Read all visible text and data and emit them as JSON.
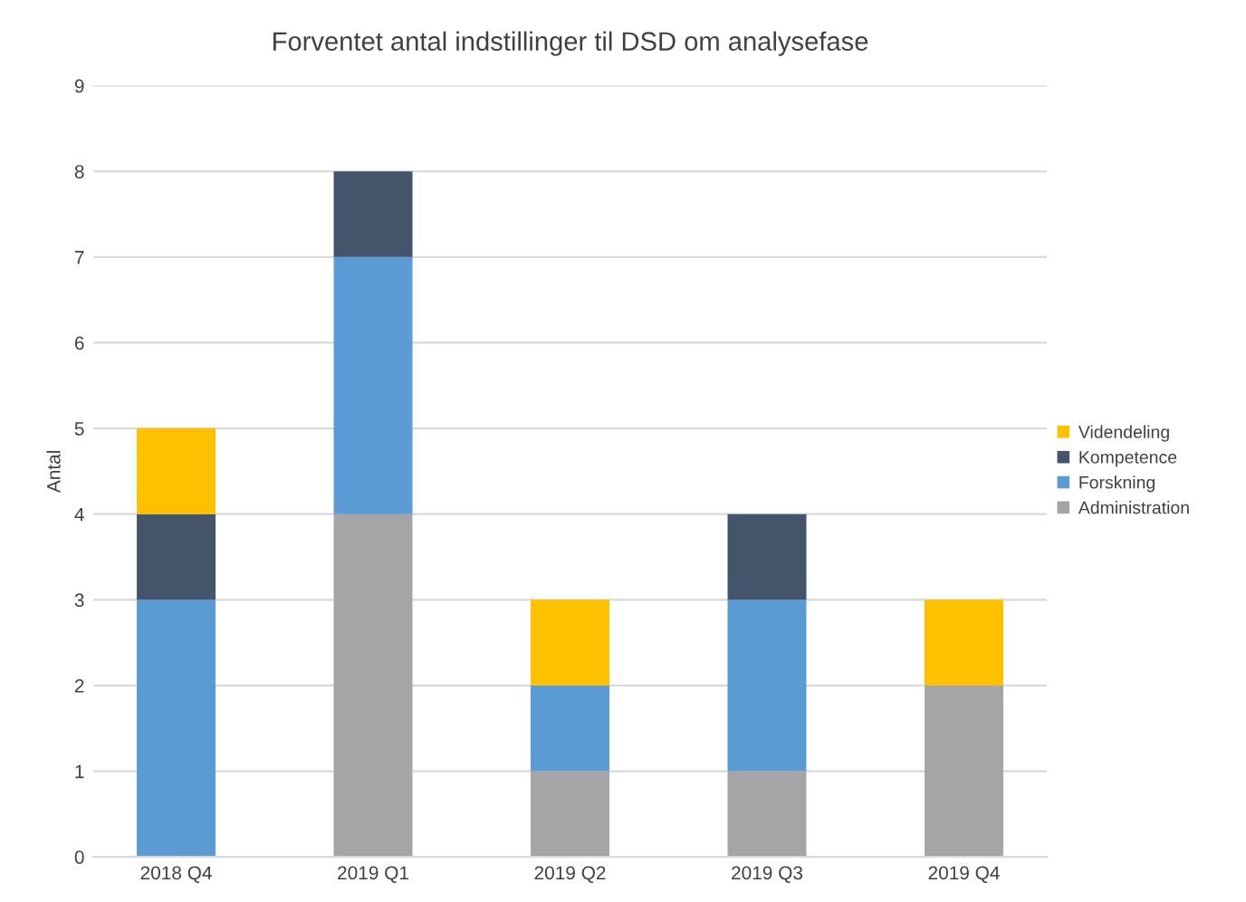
{
  "chart_data": {
    "type": "bar",
    "title": "Forventet antal indstillinger til DSD om analysefase",
    "ylabel": "Antal",
    "stacked": true,
    "categories": [
      "2018 Q4",
      "2019 Q1",
      "2019 Q2",
      "2019 Q3",
      "2019 Q4"
    ],
    "series": [
      {
        "name": "Administration",
        "color": "#a5a5a5",
        "values": [
          0,
          4,
          1,
          1,
          2
        ]
      },
      {
        "name": "Forskning",
        "color": "#5b9bd5",
        "values": [
          3,
          3,
          1,
          2,
          0
        ]
      },
      {
        "name": "Kompetence",
        "color": "#44546a",
        "values": [
          1,
          1,
          0,
          1,
          0
        ]
      },
      {
        "name": "Videndeling",
        "color": "#ffc000",
        "values": [
          1,
          0,
          1,
          0,
          1
        ]
      }
    ],
    "ylim": [
      0,
      9
    ],
    "yticks": [
      0,
      1,
      2,
      3,
      4,
      5,
      6,
      7,
      8,
      9
    ],
    "grid": "y",
    "legend": "right"
  }
}
